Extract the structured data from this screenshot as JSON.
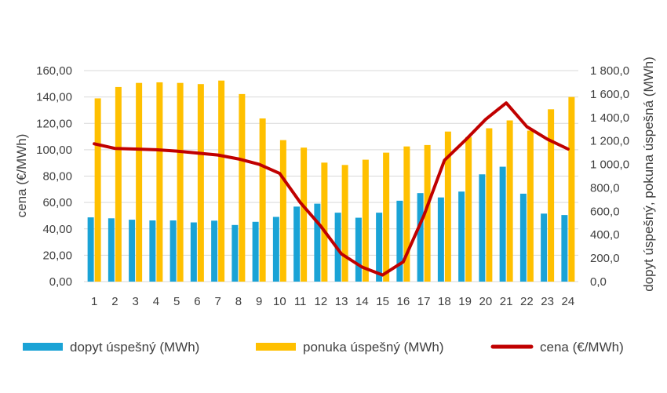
{
  "chart_data": {
    "type": "bar",
    "categories": [
      "1",
      "2",
      "3",
      "4",
      "5",
      "6",
      "7",
      "8",
      "9",
      "10",
      "11",
      "12",
      "13",
      "14",
      "15",
      "16",
      "17",
      "18",
      "19",
      "20",
      "21",
      "22",
      "23",
      "24"
    ],
    "series": [
      {
        "name": "dopyt úspešný (MWh)",
        "chart_type": "bar",
        "axis": "right",
        "color": "#1AA3D6",
        "values": [
          548,
          540,
          528,
          522,
          522,
          505,
          520,
          483,
          510,
          552,
          640,
          665,
          588,
          545,
          588,
          690,
          755,
          718,
          768,
          915,
          980,
          750,
          580,
          568
        ]
      },
      {
        "name": "ponuka úspešný (MWh)",
        "chart_type": "bar",
        "axis": "right",
        "color": "#FFC000",
        "values": [
          1563,
          1660,
          1695,
          1700,
          1695,
          1685,
          1715,
          1600,
          1392,
          1207,
          1143,
          1015,
          995,
          1040,
          1100,
          1153,
          1165,
          1280,
          1233,
          1308,
          1375,
          1288,
          1470,
          1575
        ]
      },
      {
        "name": "cena (€/MWh)",
        "chart_type": "line",
        "axis": "left",
        "color": "#C00000",
        "values": [
          104.5,
          101.0,
          100.5,
          100.0,
          99.0,
          97.5,
          96.0,
          93.0,
          89.0,
          82.0,
          60.0,
          42.0,
          21.0,
          11.0,
          5.0,
          15.0,
          50.0,
          92.0,
          107.0,
          123.0,
          135.5,
          117.5,
          108.0,
          100.5
        ]
      }
    ],
    "y_left": {
      "label": "cena (€/MWh)",
      "min": 0,
      "max": 160,
      "step": 20,
      "tick_labels": [
        "0,00",
        "20,00",
        "40,00",
        "60,00",
        "80,00",
        "100,00",
        "120,00",
        "140,00",
        "160,00"
      ]
    },
    "y_right": {
      "label": "dopyt úspešný, pokuna úspešná (MWh)",
      "min": 0,
      "max": 1800,
      "step": 200,
      "tick_labels": [
        "0,0",
        "200,0",
        "400,0",
        "600,0",
        "800,0",
        "1 000,0",
        "1 200,0",
        "1 400,0",
        "1 600,0",
        "1 800,0"
      ]
    },
    "grid": true,
    "legend_position": "bottom"
  },
  "colors": {
    "gridline": "#D9D9D9",
    "text": "#404040"
  }
}
